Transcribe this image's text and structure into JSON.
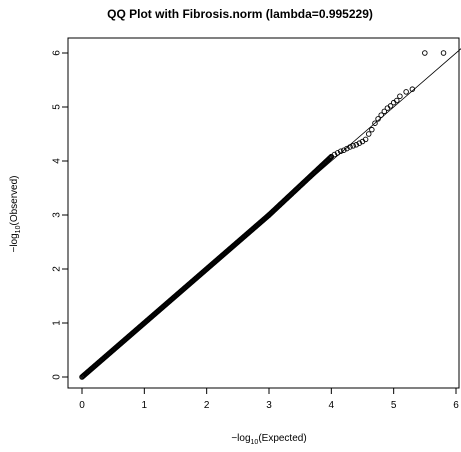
{
  "chart_data": {
    "type": "scatter",
    "title": "QQ Plot with Fibrosis.norm (lambda=0.995229)",
    "xlabel": {
      "prefix": "−log",
      "sub": "10",
      "suffix": "(Expected)"
    },
    "ylabel": {
      "prefix": "−log",
      "sub": "10",
      "suffix": "(Observed)"
    },
    "xlim": [
      0,
      6
    ],
    "ylim": [
      0,
      6
    ],
    "xticks": [
      "0",
      "1",
      "2",
      "3",
      "4",
      "5",
      "6"
    ],
    "yticks": [
      "0",
      "1",
      "2",
      "3",
      "4",
      "5",
      "6"
    ],
    "reference_line": {
      "slope": 1,
      "intercept": 0
    },
    "dense_segments": [
      {
        "x_from": 0.0,
        "x_to": 3.0,
        "slope": 1.0
      },
      {
        "x_from": 3.0,
        "x_to": 4.0,
        "slope": 1.08
      }
    ],
    "points": [
      [
        4.0,
        4.08
      ],
      [
        4.05,
        4.12
      ],
      [
        4.1,
        4.15
      ],
      [
        4.15,
        4.18
      ],
      [
        4.2,
        4.2
      ],
      [
        4.25,
        4.23
      ],
      [
        4.3,
        4.26
      ],
      [
        4.35,
        4.28
      ],
      [
        4.4,
        4.3
      ],
      [
        4.45,
        4.33
      ],
      [
        4.5,
        4.36
      ],
      [
        4.55,
        4.4
      ],
      [
        4.6,
        4.5
      ],
      [
        4.65,
        4.58
      ],
      [
        4.7,
        4.7
      ],
      [
        4.75,
        4.78
      ],
      [
        4.8,
        4.85
      ],
      [
        4.85,
        4.92
      ],
      [
        4.9,
        4.98
      ],
      [
        4.95,
        5.02
      ],
      [
        5.0,
        5.08
      ],
      [
        5.05,
        5.12
      ],
      [
        5.1,
        5.2
      ],
      [
        5.2,
        5.28
      ],
      [
        5.3,
        5.33
      ],
      [
        5.5,
        6.0
      ],
      [
        5.8,
        6.0
      ]
    ]
  },
  "colors": {
    "points": "#000000",
    "line": "#000000",
    "axis": "#000000"
  }
}
